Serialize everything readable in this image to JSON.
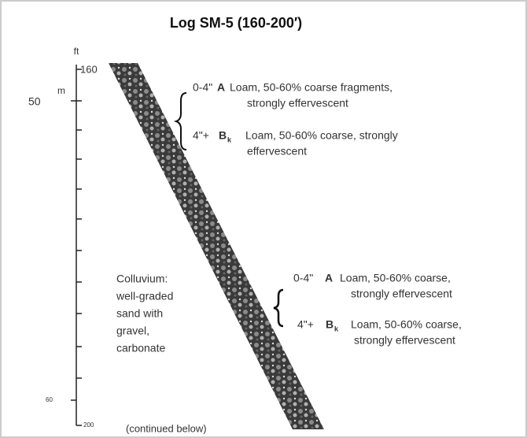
{
  "title": "Log SM-5 (160-200′)",
  "scale": {
    "ft_label": "ft",
    "m_label": "m",
    "ft_top": "160",
    "ft_bottom": "200",
    "m_top": "50",
    "m_bottom": "60"
  },
  "horizon_groups": [
    {
      "entries": [
        {
          "depth": "0-4\"",
          "horizon": "A",
          "subscript": "",
          "lines": [
            "Loam, 50-60% coarse fragments,",
            "strongly effervescent"
          ]
        },
        {
          "depth": "4\"+",
          "horizon": "B",
          "subscript": "k",
          "lines": [
            "Loam, 50-60% coarse, strongly",
            "effervescent"
          ]
        }
      ]
    },
    {
      "entries": [
        {
          "depth": "0-4\"",
          "horizon": "A",
          "subscript": "",
          "lines": [
            "Loam, 50-60% coarse,",
            "strongly effervescent"
          ]
        },
        {
          "depth": "4\"+",
          "horizon": "B",
          "subscript": "k",
          "lines": [
            "Loam, 50-60% coarse,",
            "strongly effervescent"
          ]
        }
      ]
    }
  ],
  "unit_label": [
    "Colluvium:",
    "well-graded",
    "sand with",
    "gravel,",
    "carbonate"
  ],
  "footer": "(continued below)"
}
